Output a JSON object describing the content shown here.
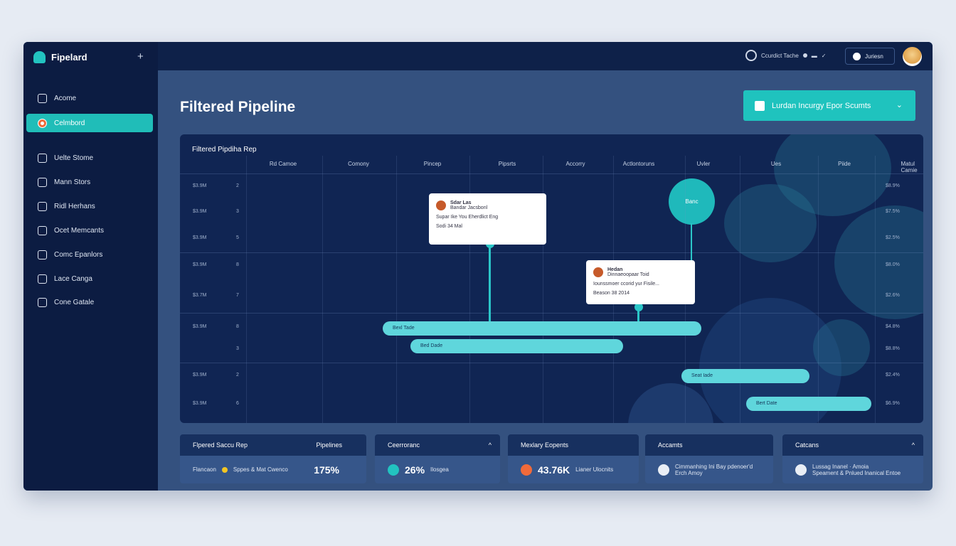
{
  "app": {
    "name": "Fipelard"
  },
  "sidebar": {
    "items": [
      {
        "label": "Acome",
        "icon": "home-icon"
      },
      {
        "label": "Celmbord",
        "icon": "dashboard-icon",
        "active": true
      },
      {
        "label": "Uelte Stome",
        "icon": "inbox-icon"
      },
      {
        "label": "Mann Stors",
        "icon": "target-icon"
      },
      {
        "label": "Ridl Herhans",
        "icon": "lock-icon"
      },
      {
        "label": "Ocet Memcants",
        "icon": "tag-icon"
      },
      {
        "label": "Comc Epanlors",
        "icon": "users-icon"
      },
      {
        "label": "Lace Canga",
        "icon": "grid-icon"
      },
      {
        "label": "Cone Gatale",
        "icon": "calendar-icon"
      }
    ]
  },
  "topbar": {
    "status_label": "Ccurdict Tache",
    "button_label": "Juriesn"
  },
  "page": {
    "title": "Filtered Pipeline",
    "cta_label": "Lurdan Incurgy Epor Scumts"
  },
  "chart_data": {
    "type": "table",
    "title": "Filtered Pipdiha Rep",
    "columns": [
      "Rd Camoe",
      "Comony",
      "Pincep",
      "Pipsrts",
      "Accorry",
      "Actlontoruns",
      "Uvler",
      "Ues",
      "Piide",
      "Matul Camie"
    ],
    "rows": [
      {
        "left": "$3.9M",
        "count": "2",
        "right": "$8.9%"
      },
      {
        "left": "$3.9M",
        "count": "3",
        "right": "$7.5%"
      },
      {
        "left": "$3.9M",
        "count": "5",
        "right": "$2.5%"
      },
      {
        "left": "$3.9M",
        "count": "8",
        "right": "$8.0%"
      },
      {
        "left": "$3.7M",
        "count": "7",
        "right": "$2.6%"
      },
      {
        "left": "$3.9M",
        "count": "8",
        "right": "$4.8%"
      },
      {
        "left": "",
        "count": "3",
        "right": "$8.8%"
      },
      {
        "left": "$3.9M",
        "count": "2",
        "right": "$2.4%"
      },
      {
        "left": "$3.9M",
        "count": "6",
        "right": "$6.9%"
      }
    ],
    "bars": [
      {
        "label": "Bexl Tade"
      },
      {
        "label": "Bed Dade"
      },
      {
        "label": "Seat Iade"
      },
      {
        "label": "Bert Date"
      }
    ],
    "marker_label": "Banc",
    "cards": [
      {
        "name": "Sdar Las",
        "subtitle": "Bandar Jacsbonl",
        "text": "Supar Ike You Eherdlict Eng",
        "date": "Sodi 34 Mal"
      },
      {
        "name": "Hedan",
        "subtitle": "Dinnaeoopaar Toid",
        "text": "Iounssmoer ccorid yur Fisile...",
        "date": "Beason 38 2014"
      }
    ]
  },
  "kpis": [
    {
      "title": "Flpered Saccu Rep",
      "title2": "Pipelines",
      "caption": "Flancaon",
      "caption2": "Sppes & Mat Cwenco",
      "value": "175%",
      "color": "#f3c623"
    },
    {
      "title": "Ceerroranc",
      "value": "26%",
      "caption": "Ilosgea",
      "color": "#22c3c0"
    },
    {
      "title": "Mexlary Eopents",
      "value": "43.76K",
      "caption": "Lianer Ulocnits",
      "color": "#f06a3a"
    },
    {
      "title": "Accamts",
      "caption": "Cimmanhing Ini Bay pdenoer'd",
      "caption2": "Erch Amoy"
    },
    {
      "title": "Catcans",
      "caption": "Lussag Inanel · Amoia",
      "caption2": "Speament & Pnlued Inanical Entoe"
    }
  ]
}
